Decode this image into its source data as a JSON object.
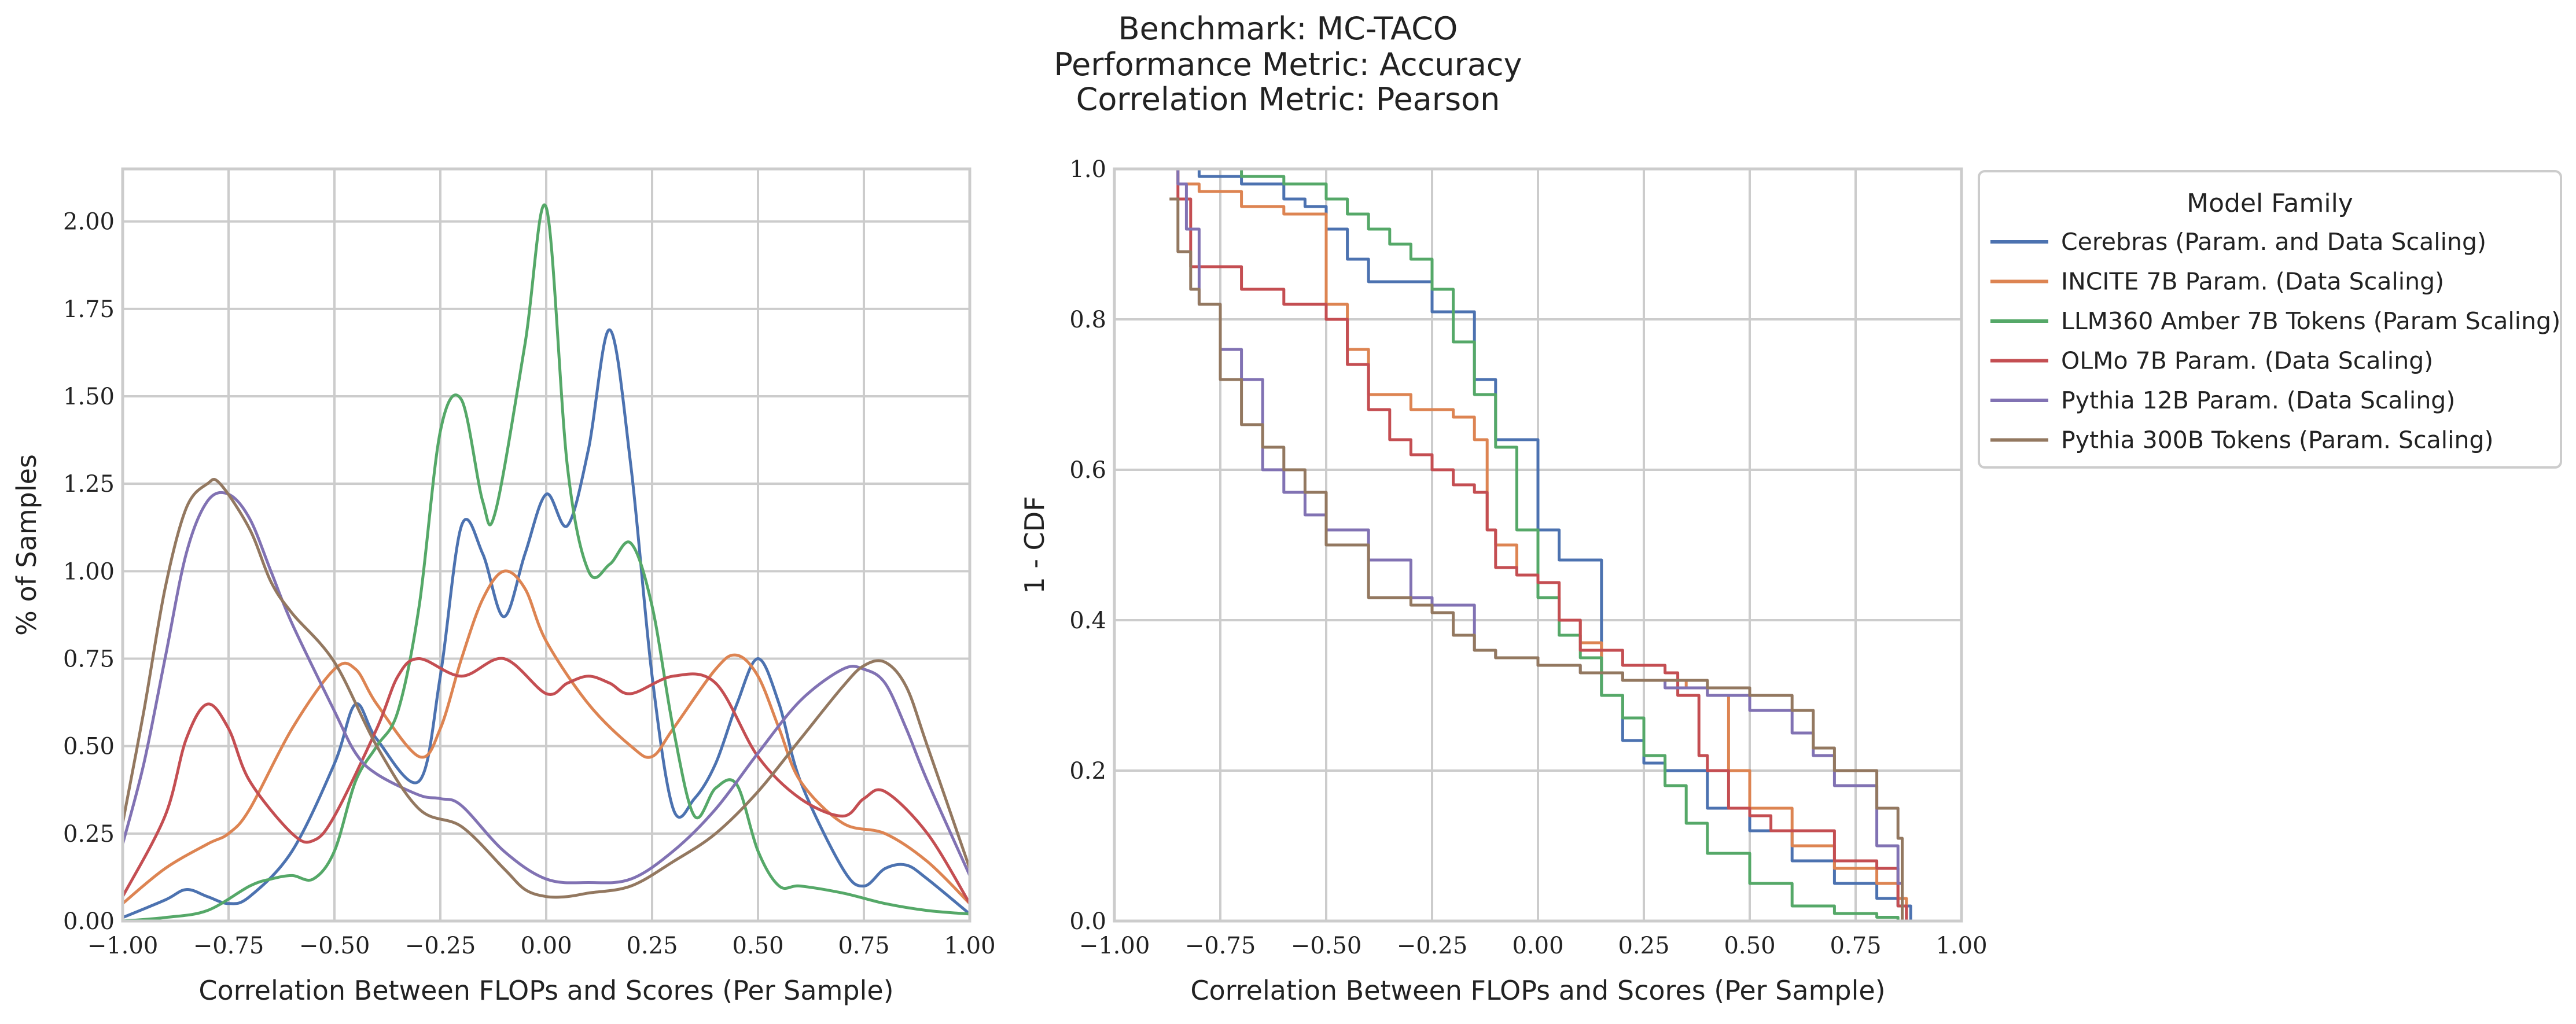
{
  "figure": {
    "title_lines": [
      "Benchmark: MC-TACO",
      "Performance Metric: Accuracy",
      "Correlation Metric: Pearson"
    ]
  },
  "colors": {
    "Cerebras": "#4c72b0",
    "INCITE": "#dd8452",
    "LLM360": "#55a868",
    "OLMo": "#c44e52",
    "Pythia12B": "#8172b3",
    "Pythia300B": "#937860"
  },
  "legend": {
    "title": "Model Family",
    "placement": "outside-right-top",
    "entries": [
      {
        "label": "Cerebras (Param. and Data Scaling)",
        "color": "#4c72b0"
      },
      {
        "label": "INCITE 7B Param. (Data Scaling)",
        "color": "#dd8452"
      },
      {
        "label": "LLM360 Amber 7B Tokens (Param Scaling)",
        "color": "#55a868"
      },
      {
        "label": "OLMo 7B Param. (Data Scaling)",
        "color": "#c44e52"
      },
      {
        "label": "Pythia 12B Param. (Data Scaling)",
        "color": "#8172b3"
      },
      {
        "label": "Pythia 300B Tokens (Param. Scaling)",
        "color": "#937860"
      }
    ]
  },
  "chart_data": [
    {
      "type": "line",
      "subtype": "kde",
      "xlabel": "Correlation Between FLOPs and Scores (Per Sample)",
      "ylabel": "% of Samples",
      "xlim": [
        -1.0,
        1.0
      ],
      "ylim": [
        0.0,
        2.15
      ],
      "xticks": [
        "−1.00",
        "−0.75",
        "−0.50",
        "−0.25",
        "0.00",
        "0.25",
        "0.50",
        "0.75",
        "1.00"
      ],
      "xtick_values": [
        -1.0,
        -0.75,
        -0.5,
        -0.25,
        0.0,
        0.25,
        0.5,
        0.75,
        1.0
      ],
      "yticks": [
        "0.00",
        "0.25",
        "0.50",
        "0.75",
        "1.00",
        "1.25",
        "1.50",
        "1.75",
        "2.00"
      ],
      "ytick_values": [
        0,
        0.25,
        0.5,
        0.75,
        1.0,
        1.25,
        1.5,
        1.75,
        2.0
      ],
      "grid": true,
      "series": [
        {
          "name": "Cerebras (Param. and Data Scaling)",
          "color": "#4c72b0",
          "x": [
            -1.0,
            -0.9,
            -0.85,
            -0.8,
            -0.75,
            -0.7,
            -0.6,
            -0.5,
            -0.45,
            -0.4,
            -0.3,
            -0.25,
            -0.2,
            -0.15,
            -0.1,
            -0.05,
            0.0,
            0.05,
            0.1,
            0.15,
            0.2,
            0.25,
            0.3,
            0.35,
            0.4,
            0.45,
            0.5,
            0.55,
            0.6,
            0.7,
            0.75,
            0.8,
            0.85,
            0.9,
            1.0
          ],
          "y": [
            0.01,
            0.06,
            0.09,
            0.07,
            0.05,
            0.07,
            0.2,
            0.45,
            0.62,
            0.52,
            0.4,
            0.7,
            1.13,
            1.05,
            0.87,
            1.05,
            1.22,
            1.13,
            1.35,
            1.69,
            1.3,
            0.7,
            0.32,
            0.35,
            0.45,
            0.62,
            0.75,
            0.62,
            0.4,
            0.15,
            0.1,
            0.15,
            0.16,
            0.12,
            0.02
          ]
        },
        {
          "name": "INCITE 7B Param. (Data Scaling)",
          "color": "#dd8452",
          "x": [
            -1.0,
            -0.9,
            -0.8,
            -0.75,
            -0.7,
            -0.6,
            -0.5,
            -0.45,
            -0.4,
            -0.3,
            -0.25,
            -0.2,
            -0.15,
            -0.1,
            -0.05,
            0.0,
            0.1,
            0.2,
            0.25,
            0.3,
            0.4,
            0.45,
            0.5,
            0.55,
            0.6,
            0.7,
            0.8,
            0.9,
            1.0
          ],
          "y": [
            0.05,
            0.15,
            0.22,
            0.25,
            0.32,
            0.55,
            0.72,
            0.72,
            0.62,
            0.47,
            0.55,
            0.75,
            0.92,
            1.0,
            0.95,
            0.8,
            0.62,
            0.5,
            0.47,
            0.55,
            0.72,
            0.76,
            0.7,
            0.55,
            0.4,
            0.28,
            0.25,
            0.17,
            0.05
          ]
        },
        {
          "name": "LLM360 Amber 7B Tokens (Param Scaling)",
          "color": "#55a868",
          "x": [
            -1.0,
            -0.9,
            -0.8,
            -0.7,
            -0.65,
            -0.6,
            -0.55,
            -0.5,
            -0.45,
            -0.4,
            -0.35,
            -0.3,
            -0.25,
            -0.2,
            -0.15,
            -0.12,
            -0.05,
            0.0,
            0.05,
            0.1,
            0.15,
            0.2,
            0.25,
            0.3,
            0.35,
            0.4,
            0.45,
            0.5,
            0.55,
            0.6,
            0.7,
            0.8,
            0.9,
            1.0
          ],
          "y": [
            0.0,
            0.01,
            0.03,
            0.1,
            0.12,
            0.13,
            0.12,
            0.2,
            0.4,
            0.5,
            0.6,
            0.9,
            1.4,
            1.49,
            1.2,
            1.17,
            1.65,
            2.04,
            1.3,
            1.0,
            1.02,
            1.08,
            0.9,
            0.55,
            0.3,
            0.38,
            0.39,
            0.2,
            0.1,
            0.1,
            0.08,
            0.05,
            0.03,
            0.02
          ]
        },
        {
          "name": "OLMo 7B Param. (Data Scaling)",
          "color": "#c44e52",
          "x": [
            -1.0,
            -0.9,
            -0.85,
            -0.8,
            -0.75,
            -0.7,
            -0.6,
            -0.55,
            -0.5,
            -0.4,
            -0.35,
            -0.3,
            -0.2,
            -0.1,
            0.0,
            0.05,
            0.1,
            0.15,
            0.2,
            0.3,
            0.4,
            0.5,
            0.6,
            0.7,
            0.75,
            0.8,
            0.9,
            1.0
          ],
          "y": [
            0.07,
            0.3,
            0.52,
            0.62,
            0.55,
            0.4,
            0.25,
            0.23,
            0.3,
            0.55,
            0.7,
            0.75,
            0.7,
            0.75,
            0.65,
            0.68,
            0.7,
            0.68,
            0.65,
            0.7,
            0.68,
            0.47,
            0.35,
            0.3,
            0.35,
            0.37,
            0.25,
            0.05
          ]
        },
        {
          "name": "Pythia 12B Param. (Data Scaling)",
          "color": "#8172b3",
          "x": [
            -1.0,
            -0.95,
            -0.9,
            -0.85,
            -0.8,
            -0.75,
            -0.7,
            -0.65,
            -0.6,
            -0.5,
            -0.45,
            -0.4,
            -0.3,
            -0.25,
            -0.2,
            -0.1,
            0.0,
            0.1,
            0.2,
            0.3,
            0.4,
            0.5,
            0.6,
            0.7,
            0.75,
            0.8,
            0.85,
            0.9,
            1.0
          ],
          "y": [
            0.22,
            0.45,
            0.75,
            1.05,
            1.2,
            1.22,
            1.15,
            1.0,
            0.85,
            0.6,
            0.48,
            0.42,
            0.36,
            0.35,
            0.33,
            0.2,
            0.12,
            0.11,
            0.12,
            0.2,
            0.32,
            0.48,
            0.63,
            0.72,
            0.72,
            0.68,
            0.55,
            0.4,
            0.13
          ]
        },
        {
          "name": "Pythia 300B Tokens (Param. Scaling)",
          "color": "#937860",
          "x": [
            -1.0,
            -0.95,
            -0.9,
            -0.85,
            -0.8,
            -0.77,
            -0.7,
            -0.65,
            -0.6,
            -0.5,
            -0.4,
            -0.3,
            -0.2,
            -0.1,
            -0.05,
            0.0,
            0.05,
            0.1,
            0.2,
            0.3,
            0.4,
            0.5,
            0.6,
            0.7,
            0.75,
            0.8,
            0.85,
            0.9,
            1.0
          ],
          "y": [
            0.28,
            0.6,
            0.95,
            1.18,
            1.25,
            1.25,
            1.12,
            0.97,
            0.88,
            0.74,
            0.5,
            0.32,
            0.27,
            0.15,
            0.09,
            0.07,
            0.07,
            0.08,
            0.1,
            0.17,
            0.25,
            0.37,
            0.52,
            0.67,
            0.73,
            0.74,
            0.67,
            0.5,
            0.15
          ]
        }
      ]
    },
    {
      "type": "line",
      "subtype": "step",
      "xlabel": "Correlation Between FLOPs and Scores (Per Sample)",
      "ylabel": "1 - CDF",
      "xlim": [
        -1.0,
        1.0
      ],
      "ylim": [
        0.0,
        1.0
      ],
      "xticks": [
        "−1.00",
        "−0.75",
        "−0.50",
        "−0.25",
        "0.00",
        "0.25",
        "0.50",
        "0.75",
        "1.00"
      ],
      "xtick_values": [
        -1.0,
        -0.75,
        -0.5,
        -0.25,
        0.0,
        0.25,
        0.5,
        0.75,
        1.0
      ],
      "yticks": [
        "0.0",
        "0.2",
        "0.4",
        "0.6",
        "0.8",
        "1.0"
      ],
      "ytick_values": [
        0,
        0.2,
        0.4,
        0.6,
        0.8,
        1.0
      ],
      "grid": true,
      "series": [
        {
          "name": "Cerebras (Param. and Data Scaling)",
          "color": "#4c72b0",
          "x": [
            -0.88,
            -0.8,
            -0.7,
            -0.6,
            -0.55,
            -0.5,
            -0.45,
            -0.4,
            -0.3,
            -0.25,
            -0.2,
            -0.15,
            -0.1,
            -0.05,
            0.0,
            0.05,
            0.1,
            0.15,
            0.2,
            0.25,
            0.3,
            0.35,
            0.4,
            0.5,
            0.6,
            0.7,
            0.8,
            0.85,
            0.88
          ],
          "y": [
            1.0,
            0.99,
            0.98,
            0.96,
            0.95,
            0.92,
            0.88,
            0.85,
            0.85,
            0.81,
            0.81,
            0.72,
            0.64,
            0.64,
            0.52,
            0.48,
            0.48,
            0.3,
            0.24,
            0.21,
            0.2,
            0.2,
            0.15,
            0.12,
            0.08,
            0.05,
            0.03,
            0.02,
            0.0
          ]
        },
        {
          "name": "INCITE 7B Param. (Data Scaling)",
          "color": "#dd8452",
          "x": [
            -0.87,
            -0.85,
            -0.8,
            -0.75,
            -0.7,
            -0.6,
            -0.5,
            -0.45,
            -0.4,
            -0.3,
            -0.2,
            -0.15,
            -0.12,
            -0.1,
            -0.05,
            0.0,
            0.05,
            0.1,
            0.15,
            0.2,
            0.3,
            0.35,
            0.4,
            0.45,
            0.5,
            0.6,
            0.7,
            0.8,
            0.85,
            0.87
          ],
          "y": [
            1.0,
            0.98,
            0.97,
            0.97,
            0.95,
            0.94,
            0.82,
            0.76,
            0.7,
            0.68,
            0.67,
            0.64,
            0.52,
            0.5,
            0.46,
            0.45,
            0.4,
            0.37,
            0.33,
            0.32,
            0.32,
            0.31,
            0.3,
            0.2,
            0.15,
            0.1,
            0.07,
            0.05,
            0.03,
            0.0
          ]
        },
        {
          "name": "LLM360 Amber 7B Tokens (Param Scaling)",
          "color": "#55a868",
          "x": [
            -0.88,
            -0.8,
            -0.7,
            -0.6,
            -0.5,
            -0.45,
            -0.4,
            -0.35,
            -0.3,
            -0.25,
            -0.2,
            -0.15,
            -0.1,
            -0.05,
            0.0,
            0.05,
            0.1,
            0.15,
            0.2,
            0.25,
            0.3,
            0.35,
            0.4,
            0.5,
            0.6,
            0.7,
            0.8,
            0.85
          ],
          "y": [
            1.0,
            1.0,
            0.99,
            0.98,
            0.96,
            0.94,
            0.92,
            0.9,
            0.88,
            0.84,
            0.77,
            0.7,
            0.63,
            0.52,
            0.43,
            0.38,
            0.35,
            0.3,
            0.27,
            0.22,
            0.18,
            0.13,
            0.09,
            0.05,
            0.02,
            0.01,
            0.005,
            0.0
          ]
        },
        {
          "name": "OLMo 7B Param. (Data Scaling)",
          "color": "#c44e52",
          "x": [
            -0.87,
            -0.85,
            -0.82,
            -0.75,
            -0.7,
            -0.6,
            -0.5,
            -0.45,
            -0.4,
            -0.35,
            -0.3,
            -0.25,
            -0.2,
            -0.15,
            -0.12,
            -0.1,
            -0.05,
            0.0,
            0.05,
            0.1,
            0.2,
            0.3,
            0.33,
            0.38,
            0.4,
            0.45,
            0.5,
            0.55,
            0.6,
            0.7,
            0.8,
            0.85,
            0.87
          ],
          "y": [
            1.0,
            0.96,
            0.87,
            0.87,
            0.84,
            0.82,
            0.8,
            0.74,
            0.68,
            0.64,
            0.62,
            0.6,
            0.58,
            0.57,
            0.52,
            0.47,
            0.46,
            0.45,
            0.4,
            0.36,
            0.34,
            0.33,
            0.3,
            0.22,
            0.2,
            0.15,
            0.14,
            0.12,
            0.12,
            0.08,
            0.07,
            0.02,
            0.0
          ]
        },
        {
          "name": "Pythia 12B Param. (Data Scaling)",
          "color": "#8172b3",
          "x": [
            -0.88,
            -0.85,
            -0.83,
            -0.8,
            -0.75,
            -0.7,
            -0.65,
            -0.6,
            -0.55,
            -0.5,
            -0.4,
            -0.3,
            -0.25,
            -0.2,
            -0.15,
            -0.1,
            0.0,
            0.1,
            0.2,
            0.3,
            0.4,
            0.5,
            0.6,
            0.65,
            0.7,
            0.8,
            0.85,
            0.86
          ],
          "y": [
            1.0,
            0.98,
            0.92,
            0.82,
            0.76,
            0.72,
            0.6,
            0.57,
            0.54,
            0.52,
            0.48,
            0.43,
            0.42,
            0.42,
            0.36,
            0.35,
            0.34,
            0.33,
            0.32,
            0.31,
            0.3,
            0.28,
            0.25,
            0.22,
            0.18,
            0.1,
            0.05,
            0.0
          ]
        },
        {
          "name": "Pythia 300B Tokens (Param. Scaling)",
          "color": "#937860",
          "x": [
            -0.87,
            -0.85,
            -0.82,
            -0.8,
            -0.75,
            -0.7,
            -0.65,
            -0.6,
            -0.55,
            -0.5,
            -0.4,
            -0.3,
            -0.25,
            -0.2,
            -0.15,
            -0.1,
            0.0,
            0.1,
            0.2,
            0.3,
            0.4,
            0.5,
            0.6,
            0.65,
            0.7,
            0.8,
            0.85,
            0.86
          ],
          "y": [
            0.96,
            0.89,
            0.84,
            0.82,
            0.72,
            0.66,
            0.63,
            0.6,
            0.57,
            0.5,
            0.43,
            0.42,
            0.41,
            0.38,
            0.36,
            0.35,
            0.34,
            0.33,
            0.32,
            0.32,
            0.31,
            0.3,
            0.28,
            0.23,
            0.2,
            0.15,
            0.11,
            0.0
          ]
        }
      ]
    }
  ]
}
